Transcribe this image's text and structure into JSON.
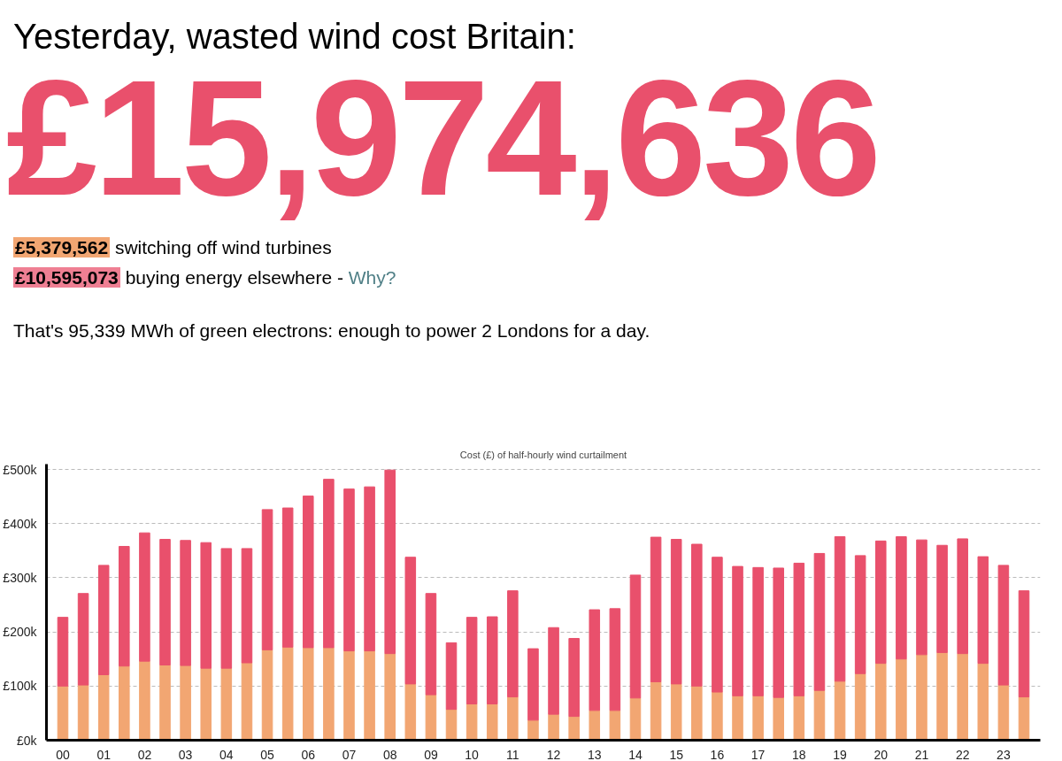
{
  "chart_data": {
    "type": "bar",
    "stacked": true,
    "title": "Cost (£) of half-hourly wind curtailment",
    "annotations": [
      "Yesterday, wasted wind cost Britain:",
      "£15,974,636",
      "£5,379,562 switching off wind turbines",
      "£10,595,073 buying energy elsewhere - Why?",
      "That's 95,339 MWh of green electrons: enough to power 2 Londons for a day."
    ],
    "categories": [
      "00",
      null,
      "01",
      null,
      "02",
      null,
      "03",
      null,
      "04",
      null,
      "05",
      null,
      "06",
      null,
      "07",
      null,
      "08",
      null,
      "09",
      null,
      "10",
      null,
      "11",
      null,
      "12",
      null,
      "13",
      null,
      "14",
      null,
      "15",
      null,
      "16",
      null,
      "17",
      null,
      "18",
      null,
      "19",
      null,
      "20",
      null,
      "21",
      null,
      "22",
      null,
      "23",
      null
    ],
    "series": [
      {
        "color": "#f2a672",
        "values": [
          100,
          102,
          121,
          137,
          146,
          139,
          138,
          133,
          133,
          143,
          167,
          172,
          171,
          171,
          165,
          165,
          160,
          104,
          84,
          57,
          67,
          67,
          80,
          37,
          48,
          44,
          55,
          55,
          78,
          108,
          104,
          100,
          89,
          82,
          82,
          79,
          82,
          92,
          109,
          123,
          142,
          150,
          158,
          162,
          160,
          142,
          102,
          80
        ]
      },
      {
        "color": "#e9506c",
        "values": [
          127,
          169,
          202,
          221,
          237,
          232,
          231,
          232,
          221,
          211,
          259,
          257,
          280,
          311,
          299,
          303,
          339,
          234,
          187,
          123,
          160,
          161,
          196,
          132,
          160,
          144,
          186,
          188,
          227,
          267,
          267,
          262,
          249,
          239,
          237,
          239,
          245,
          253,
          267,
          218,
          226,
          226,
          212,
          198,
          212,
          197,
          221,
          196
        ]
      }
    ],
    "ylim": [
      0,
      510
    ],
    "yticks": [
      {
        "value": 0,
        "label": "£0k"
      },
      {
        "value": 100,
        "label": "£100k"
      },
      {
        "value": 200,
        "label": "£200k"
      },
      {
        "value": 300,
        "label": "£300k"
      },
      {
        "value": 400,
        "label": "£400k"
      },
      {
        "value": 500,
        "label": "£500k"
      }
    ],
    "grid": "y"
  }
}
